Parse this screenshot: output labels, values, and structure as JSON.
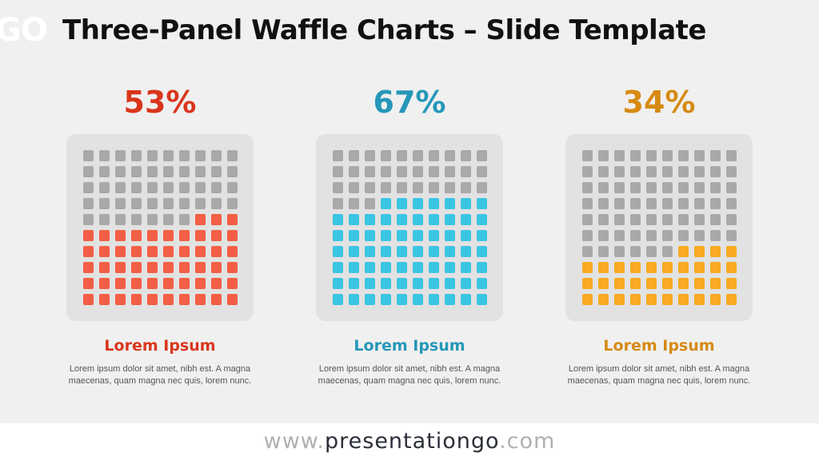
{
  "header": {
    "logo_text": "GO",
    "title": "Three-Panel Waffle Charts – Slide Template"
  },
  "colors": {
    "background": "#f0f0f0",
    "waffle_bg": "#e2e2e2",
    "empty_cell": "#a9a9a9"
  },
  "chart_data": [
    {
      "type": "waffle",
      "percent_label": "53%",
      "value": 53,
      "total": 100,
      "label_color": "#d9361c",
      "cell_color": "#f25e45",
      "heading": "Lorem Ipsum",
      "body": "Lorem ipsum dolor sit amet, nibh est. A magna maecenas, quam magna nec quis, lorem nunc."
    },
    {
      "type": "waffle",
      "percent_label": "67%",
      "value": 67,
      "total": 100,
      "label_color": "#2597b8",
      "cell_color": "#3cc5e2",
      "heading": "Lorem Ipsum",
      "body": "Lorem ipsum dolor sit amet, nibh est. A magna maecenas, quam magna nec quis, lorem nunc."
    },
    {
      "type": "waffle",
      "percent_label": "34%",
      "value": 34,
      "total": 100,
      "label_color": "#d68a13",
      "cell_color": "#f7aa22",
      "heading": "Lorem Ipsum",
      "body": "Lorem ipsum dolor sit amet, nibh est. A magna maecenas, quam magna nec quis, lorem nunc."
    }
  ],
  "footer": {
    "prefix": "www.",
    "brand": "presentationgo",
    "suffix": ".com"
  }
}
